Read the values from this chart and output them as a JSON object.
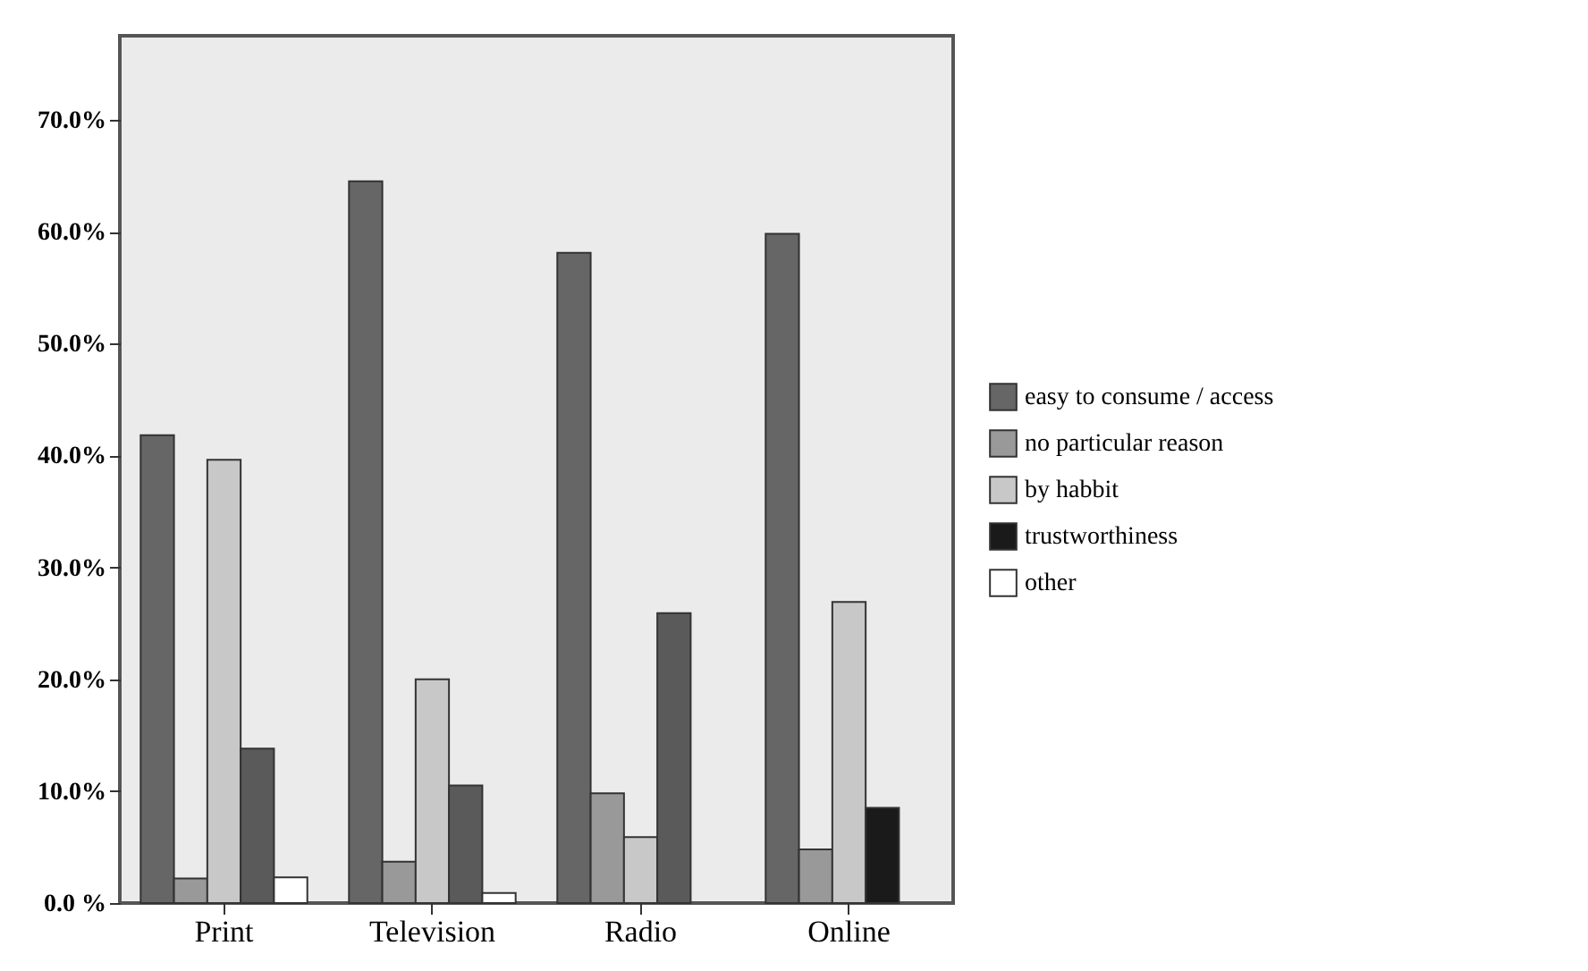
{
  "chart_data": {
    "type": "bar",
    "categories": [
      "Print",
      "Television",
      "Radio",
      "Online"
    ],
    "series": [
      {
        "name": "easy to consume / access",
        "color": "#666666",
        "values": [
          41.8,
          64.5,
          58.1,
          59.8
        ]
      },
      {
        "name": "no particular reason",
        "color": "#999999",
        "values": [
          2.2,
          3.7,
          9.8,
          4.8
        ]
      },
      {
        "name": "by habbit",
        "color": "#c8c8c8",
        "values": [
          39.6,
          20.0,
          5.9,
          26.9
        ]
      },
      {
        "name": "trustworthiness",
        "color": "#1a1a1a",
        "colors": [
          "#5a5a5a",
          "#5a5a5a",
          "#5a5a5a",
          "#1a1a1a"
        ],
        "values": [
          13.8,
          10.5,
          25.9,
          8.5
        ]
      },
      {
        "name": "other",
        "color": "#ffffff",
        "values": [
          2.3,
          0.9,
          0,
          0
        ]
      }
    ],
    "ylim": [
      0,
      77.5
    ],
    "yticks": [
      {
        "value": 0,
        "label": "0.0 %"
      },
      {
        "value": 10,
        "label": "10.0%"
      },
      {
        "value": 20,
        "label": "20.0%"
      },
      {
        "value": 30,
        "label": "30.0%"
      },
      {
        "value": 40,
        "label": "40.0%"
      },
      {
        "value": 50,
        "label": "50.0%"
      },
      {
        "value": 60,
        "label": "60.0%"
      },
      {
        "value": 70,
        "label": "70.0%"
      }
    ],
    "grid": false,
    "legend": "right"
  }
}
